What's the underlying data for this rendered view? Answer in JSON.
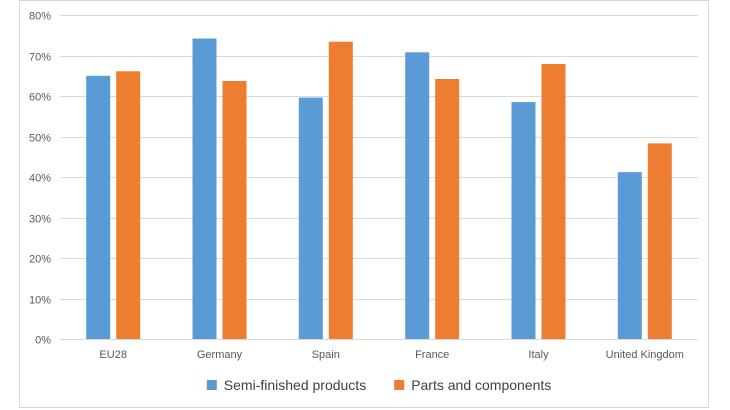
{
  "chart_data": {
    "type": "bar",
    "title": "",
    "xlabel": "",
    "ylabel": "",
    "categories": [
      "EU28",
      "Germany",
      "Spain",
      "France",
      "Italy",
      "United Kingdom"
    ],
    "series": [
      {
        "name": "Semi-finished products",
        "color": "#5b9bd5",
        "values": [
          65,
          74.2,
          59.6,
          70.8,
          58.5,
          41.2
        ]
      },
      {
        "name": "Parts and components",
        "color": "#ed7d31",
        "values": [
          66.1,
          63.7,
          73.4,
          64.2,
          67.9,
          48.3
        ]
      }
    ],
    "ylim": [
      0,
      80
    ],
    "yticks": [
      0,
      10,
      20,
      30,
      40,
      50,
      60,
      70,
      80
    ],
    "ytick_labels": [
      "0%",
      "10%",
      "20%",
      "30%",
      "40%",
      "50%",
      "60%",
      "70%",
      "80%"
    ],
    "y_format": "percent",
    "grid": true,
    "gridline_color": "#d9d9d9",
    "legend_position": "bottom"
  }
}
